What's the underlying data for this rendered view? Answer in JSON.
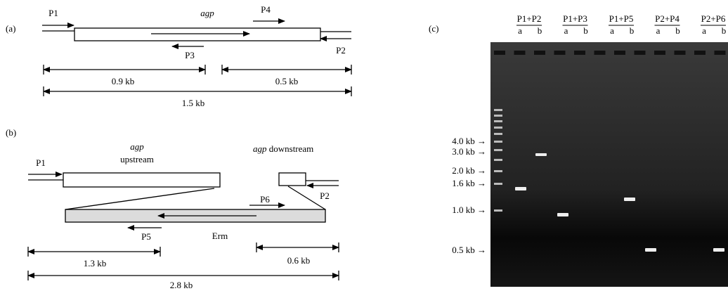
{
  "panel_a": {
    "label": "(a)",
    "gene": "agp",
    "primers": [
      "P1",
      "P4",
      "P3",
      "P2"
    ],
    "lengths": [
      "0.9 kb",
      "0.5 kb",
      "1.5 kb"
    ]
  },
  "panel_b": {
    "label": "(b)",
    "upstream_gene": "agp",
    "upstream_text": "upstream",
    "downstream_gene": "agp",
    "downstream_text": "downstream",
    "primers": [
      "P1",
      "P6",
      "P2",
      "P5"
    ],
    "cassette": "Erm",
    "lengths": [
      "1.3 kb",
      "0.6 kb",
      "2.8 kb"
    ]
  },
  "panel_c": {
    "label": "(c)",
    "lanes": [
      {
        "name": "P1+P2",
        "sub": [
          "a",
          "b"
        ]
      },
      {
        "name": "P1+P3",
        "sub": [
          "a",
          "b"
        ]
      },
      {
        "name": "P1+P5",
        "sub": [
          "a",
          "b"
        ]
      },
      {
        "name": "P2+P4",
        "sub": [
          "a",
          "b"
        ]
      },
      {
        "name": "P2+P6",
        "sub": [
          "a",
          "b"
        ]
      }
    ],
    "ladder": [
      "4.0 kb →",
      "3.0 kb →",
      "2.0 kb →",
      "1.6 kb →",
      "1.0 kb →",
      "0.5 kb →"
    ]
  }
}
